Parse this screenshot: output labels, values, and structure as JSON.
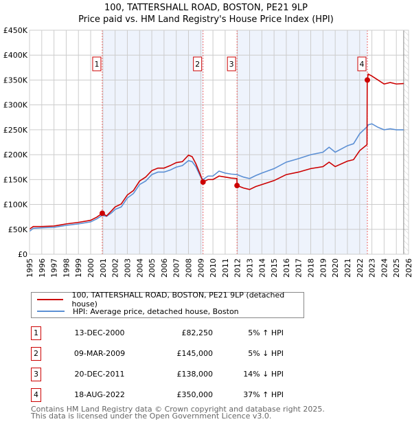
{
  "chart_data": {
    "type": "line",
    "title": "100, TATTERSHALL ROAD, BOSTON, PE21 9LP",
    "subtitle": "Price paid vs. HM Land Registry's House Price Index (HPI)",
    "xlim": [
      1995,
      2026
    ],
    "ylim": [
      0,
      450000
    ],
    "y_ticks": [
      0,
      50000,
      100000,
      150000,
      200000,
      250000,
      300000,
      350000,
      400000,
      450000
    ],
    "y_tick_labels": [
      "£0",
      "£50K",
      "£100K",
      "£150K",
      "£200K",
      "£250K",
      "£300K",
      "£350K",
      "£400K",
      "£450K"
    ],
    "x_ticks": [
      "1995",
      "1996",
      "1997",
      "1998",
      "1999",
      "2000",
      "2001",
      "2002",
      "2003",
      "2004",
      "2005",
      "2006",
      "2007",
      "2008",
      "2009",
      "2010",
      "2011",
      "2012",
      "2013",
      "2014",
      "2015",
      "2016",
      "2017",
      "2018",
      "2019",
      "2020",
      "2021",
      "2022",
      "2023",
      "2024",
      "2025",
      "2026"
    ],
    "grid": true,
    "series": [
      {
        "name": "100, TATTERSHALL ROAD, BOSTON, PE21 9LP (detached house)",
        "color": "#cc0000",
        "x": [
          1995,
          1995.3,
          1996,
          1997,
          1997.5,
          1998,
          1999,
          2000,
          2000.5,
          2000.95,
          2001.3,
          2001.7,
          2002,
          2002.5,
          2003,
          2003.5,
          2004,
          2004.5,
          2005,
          2005.5,
          2006,
          2006.5,
          2007,
          2007.5,
          2008,
          2008.3,
          2008.6,
          2009,
          2009.19,
          2009.6,
          2010,
          2010.5,
          2011,
          2011.5,
          2011.96,
          2011.97,
          2012.5,
          2013,
          2013.5,
          2014,
          2015,
          2016,
          2017,
          2018,
          2019,
          2019.5,
          2020,
          2021,
          2021.5,
          2022,
          2022.6,
          2022.62,
          2022.7,
          2023,
          2023.5,
          2024,
          2024.5,
          2025,
          2025.6
        ],
        "y": [
          50400,
          55600,
          55600,
          56700,
          58800,
          60900,
          64000,
          68200,
          74500,
          82250,
          77000,
          87000,
          95000,
          101000,
          119000,
          128000,
          147000,
          155000,
          168000,
          173000,
          173000,
          178000,
          184000,
          186000,
          199000,
          196000,
          182000,
          158000,
          145000,
          150000,
          150000,
          157000,
          155000,
          153000,
          152000,
          138000,
          133000,
          130000,
          136000,
          140000,
          148000,
          160000,
          165000,
          172000,
          176000,
          185000,
          176000,
          187000,
          190000,
          208000,
          220000,
          350000,
          362000,
          358000,
          350000,
          342000,
          345000,
          342000,
          343000
        ]
      },
      {
        "name": "HPI: Average price, detached house, Boston",
        "color": "#5b8fd4",
        "x": [
          1995,
          1995.3,
          1996,
          1997,
          1997.5,
          1998,
          1999,
          2000,
          2000.5,
          2000.95,
          2001.3,
          2001.7,
          2002,
          2002.5,
          2003,
          2003.5,
          2004,
          2004.5,
          2005,
          2005.5,
          2006,
          2006.5,
          2007,
          2007.5,
          2008,
          2008.3,
          2008.6,
          2009,
          2009.19,
          2009.6,
          2010,
          2010.5,
          2011,
          2011.5,
          2011.96,
          2011.97,
          2012.5,
          2013,
          2013.5,
          2014,
          2015,
          2016,
          2017,
          2018,
          2019,
          2019.5,
          2020,
          2021,
          2021.5,
          2022,
          2022.6,
          2022.62,
          2022.7,
          2023,
          2023.5,
          2024,
          2024.5,
          2025,
          2025.6
        ],
        "y": [
          46000,
          52000,
          53000,
          54000,
          56000,
          58000,
          61000,
          65000,
          71000,
          78000,
          76000,
          83000,
          90000,
          95000,
          113000,
          122000,
          140000,
          147000,
          160000,
          165000,
          165000,
          169000,
          175000,
          178000,
          188000,
          186000,
          176000,
          155000,
          150000,
          157000,
          157000,
          167000,
          163000,
          161000,
          160000,
          160000,
          155000,
          152000,
          158000,
          163000,
          172000,
          185000,
          192000,
          200000,
          205000,
          215000,
          205000,
          218000,
          222000,
          242000,
          256000,
          256000,
          260000,
          262000,
          255000,
          250000,
          252000,
          250000,
          250000
        ]
      }
    ],
    "sales": [
      {
        "label": "1",
        "date": "13-DEC-2000",
        "x": 2000.95,
        "price": "£82,250",
        "value": 82250,
        "hpi": "5% ↑ HPI"
      },
      {
        "label": "2",
        "date": "09-MAR-2009",
        "x": 2009.19,
        "price": "£145,000",
        "value": 145000,
        "hpi": "5% ↓ HPI"
      },
      {
        "label": "3",
        "date": "20-DEC-2011",
        "x": 2011.97,
        "price": "£138,000",
        "value": 138000,
        "hpi": "14% ↓ HPI"
      },
      {
        "label": "4",
        "date": "18-AUG-2022",
        "x": 2022.63,
        "price": "£350,000",
        "value": 350000,
        "hpi": "37% ↑ HPI"
      }
    ],
    "forecast_start": 2025.6,
    "shade_color": "#eef3fc"
  },
  "footer": {
    "line1": "Contains HM Land Registry data © Crown copyright and database right 2025.",
    "line2": "This data is licensed under the Open Government Licence v3.0."
  }
}
